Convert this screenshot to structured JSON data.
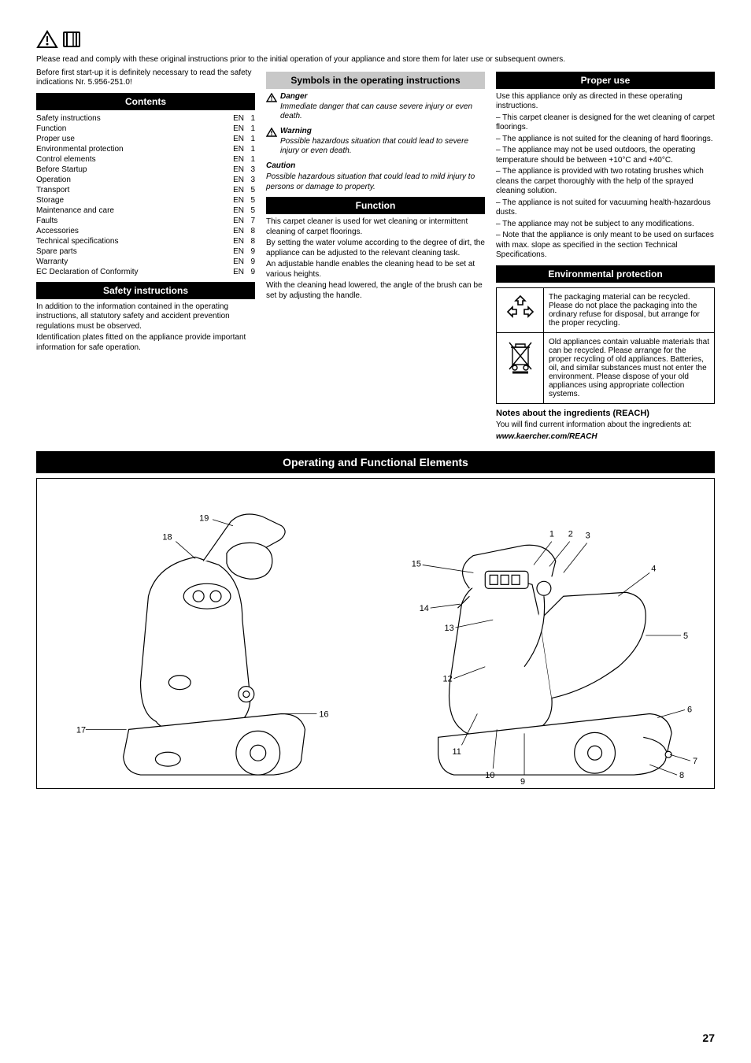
{
  "page_number": "27",
  "top_intro": "Please read and comply with these original instructions prior to the initial operation of your appliance and store them for later use or subsequent owners.",
  "col1": {
    "before_use": "Before first start-up it is definitely necessary to read the safety indications Nr. 5.956-251.0!",
    "contents_title": "Contents",
    "contents": [
      [
        "Safety instructions",
        "EN",
        "1"
      ],
      [
        "Function",
        "EN",
        "1"
      ],
      [
        "Proper use",
        "EN",
        "1"
      ],
      [
        "Environmental protection",
        "EN",
        "1"
      ],
      [
        "Control elements",
        "EN",
        "1"
      ],
      [
        "Before Startup",
        "EN",
        "3"
      ],
      [
        "Operation",
        "EN",
        "3"
      ],
      [
        "Transport",
        "EN",
        "5"
      ],
      [
        "Storage",
        "EN",
        "5"
      ],
      [
        "Maintenance and care",
        "EN",
        "5"
      ],
      [
        "Faults",
        "EN",
        "7"
      ],
      [
        "Accessories",
        "EN",
        "8"
      ],
      [
        "Technical specifications",
        "EN",
        "8"
      ],
      [
        "Spare parts",
        "EN",
        "9"
      ],
      [
        "Warranty",
        "EN",
        "9"
      ],
      [
        "EC Declaration of Conformity",
        "EN",
        "9"
      ]
    ],
    "safety_title": "Safety instructions",
    "safety_p1": "In addition to the information contained in the operating instructions, all statutory safety and accident prevention regulations must be observed.",
    "safety_p2": "Identification plates fitted on the appliance provide important information for safe operation."
  },
  "col2": {
    "symbols_title": "Symbols in the operating instructions",
    "danger_label": "Danger",
    "danger_text": "Immediate danger that can cause severe injury or even death.",
    "warning_label": "Warning",
    "warning_text": "Possible hazardous situation that could lead to severe injury or even death.",
    "caution_label": "Caution",
    "caution_text": "Possible hazardous situation that could lead to mild injury to persons or damage to property.",
    "function_title": "Function",
    "function_p1": "This carpet cleaner is used for wet cleaning or intermittent cleaning of carpet floorings.",
    "function_p2": "By setting the water volume according to the degree of dirt, the appliance can be adjusted to the relevant cleaning task.",
    "function_p3": "An adjustable handle enables the cleaning head to be set at various heights.",
    "function_p4": "With the cleaning head lowered, the angle of the brush can be set by adjusting the handle."
  },
  "col3": {
    "proper_use_title": "Proper use",
    "proper_use_text": "Use this appliance only as directed in these operating instructions.",
    "proper_use_li1": "This carpet cleaner is designed for the wet cleaning of carpet floorings.",
    "proper_use_li2": "The appliance is not suited for the cleaning of hard floorings.",
    "proper_use_li3": "The appliance may not be used outdoors, the operating temperature should be between +10°C and +40°C.",
    "proper_use_li4": "The appliance is provided with two rotating brushes which cleans the carpet thoroughly with the help of the sprayed cleaning solution.",
    "proper_use_li5": "The appliance is not suited for vacuuming health-hazardous dusts.",
    "proper_use_li6": "The appliance may not be subject to any modifications.",
    "proper_use_li7": "Note that the appliance is only meant to be used on surfaces with max. slope as specified in the section Technical Specifications.",
    "env_title": "Environmental protection",
    "env_row1": "The packaging material can be recycled. Please do not place the packaging into the ordinary refuse for disposal, but arrange for the proper recycling.",
    "env_row2": "Old appliances contain valuable materials that can be recycled. Please arrange for the proper recycling of old appliances. Batteries, oil, and similar substances must not enter the environment. Please dispose of your old appliances using appropriate collection systems.",
    "reach_title": "Notes about the ingredients (REACH)",
    "reach_text": "You will find current information about the ingredients at:",
    "reach_url": "www.kaercher.com/REACH"
  },
  "diagram_title": "Operating and Functional Elements",
  "diagram": {
    "callouts_left": [
      "17",
      "18",
      "19",
      "16"
    ],
    "callouts_right": [
      "1",
      "2",
      "3",
      "4",
      "5",
      "6",
      "7",
      "8",
      "9",
      "10",
      "11",
      "12",
      "13",
      "14",
      "15"
    ]
  }
}
